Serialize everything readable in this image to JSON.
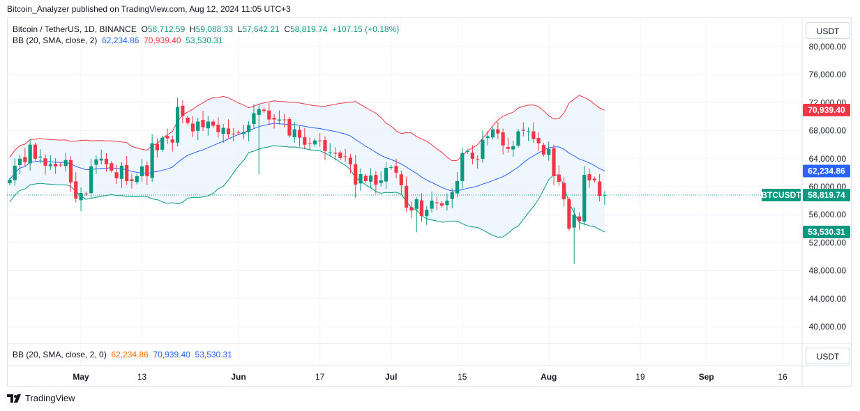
{
  "header": {
    "published": "Bitcoin_Analyzer published on TradingView.com, Aug 12, 2024 11:05 UTC+3"
  },
  "legend": {
    "symbol": "Bitcoin / TetherUS, 1D, BINANCE",
    "o_label": "O",
    "o": "58,712.59",
    "h_label": "H",
    "h": "59,088.33",
    "l_label": "L",
    "l": "57,642.21",
    "c_label": "C",
    "c": "58,819.74",
    "change": "+107.15 (+0.18%)",
    "bb_label": "BB (20, SMA, close, 2)",
    "bb_basis": "62,234.86",
    "bb_upper": "70,939.40",
    "bb_lower": "53,530.31"
  },
  "lower_pane": {
    "label": "BB (20, SMA, close, 2, 0)",
    "v1": "62,234.86",
    "v2": "70,939.40",
    "v3": "53,530.31"
  },
  "currency": "USDT",
  "footer": {
    "brand": "TradingView"
  },
  "colors": {
    "up": "#089981",
    "down": "#f23645",
    "basis": "#2962ff",
    "upper": "#f23645",
    "lower": "#089981",
    "fill": "#e8f2fc"
  },
  "chart_data": {
    "type": "candlestick",
    "title": "Bitcoin / TetherUS, 1D, BINANCE",
    "start_date": "2024-04-17",
    "close_thousands": [
      61,
      63,
      64,
      63.5,
      66,
      64,
      64.3,
      63,
      63.2,
      62.9,
      63.1,
      63.8,
      60.6,
      58.3,
      59.1,
      59.0,
      62.9,
      63.9,
      64.0,
      63.2,
      62.3,
      61.2,
      63.0,
      60.8,
      60.8,
      61.5,
      62.9,
      61.5,
      66.2,
      65.2,
      67.0,
      66.9,
      66.3,
      71.4,
      70.1,
      69.1,
      67.9,
      69.3,
      68.5,
      69.3,
      68.7,
      67.8,
      68.4,
      67.5,
      67.5,
      67.7,
      67.8,
      68.8,
      70.5,
      71.1,
      70.8,
      69.6,
      69.6,
      69.6,
      69.5,
      67.3,
      68.2,
      67.0,
      66.0,
      66.2,
      66.6,
      66.5,
      65.1,
      64.9,
      64.8,
      64.1,
      64.3,
      63.2,
      60.3,
      61.8,
      60.8,
      61.6,
      60.3,
      60.9,
      62.7,
      62.8,
      62.0,
      60.2,
      57.0,
      56.6,
      58.2,
      55.8,
      56.7,
      58.0,
      57.7,
      57.3,
      58.0,
      59.2,
      60.8,
      64.8,
      65.1,
      64.0,
      63.9,
      66.7,
      67.2,
      68.2,
      67.6,
      65.9,
      65.4,
      65.8,
      67.9,
      68.0,
      67.9,
      66.8,
      66.2,
      64.6,
      65.4,
      61.5,
      60.7,
      58.2,
      54.0,
      56.0,
      55.1,
      61.7,
      60.9,
      60.9,
      58.7,
      58.8
    ],
    "wick_lows": {
      "14": 56.5,
      "49": 61.8,
      "80": 53.5,
      "111": 49.0,
      "68": 58.4
    },
    "last_price_label": "BTCUSDT",
    "price_labels": {
      "last": "58,819.74",
      "upper": "70,939.40",
      "basis": "62,234.86",
      "lower": "53,530.31"
    },
    "y_ticks": [
      "80,000.00",
      "76,000.00",
      "72,000.00",
      "68,000.00",
      "64,000.00",
      "60,000.00",
      "56,000.00",
      "52,000.00",
      "48,000.00",
      "44,000.00",
      "40,000.00"
    ],
    "y_tick_values": [
      80000,
      76000,
      72000,
      68000,
      64000,
      60000,
      56000,
      52000,
      48000,
      44000,
      40000
    ],
    "x_ticks": [
      {
        "label": "May",
        "day": 14,
        "bold": true
      },
      {
        "label": "13",
        "day": 26
      },
      {
        "label": "Jun",
        "day": 45,
        "bold": true
      },
      {
        "label": "17",
        "day": 61
      },
      {
        "label": "Jul",
        "day": 75,
        "bold": true
      },
      {
        "label": "15",
        "day": 89
      },
      {
        "label": "Aug",
        "day": 106,
        "bold": true
      },
      {
        "label": "19",
        "day": 124
      },
      {
        "label": "Sep",
        "day": 137,
        "bold": true
      },
      {
        "label": "16",
        "day": 152
      }
    ],
    "ylim": [
      40000,
      80000
    ],
    "indicator": "Bollinger Bands (20, SMA, close, 2)"
  }
}
